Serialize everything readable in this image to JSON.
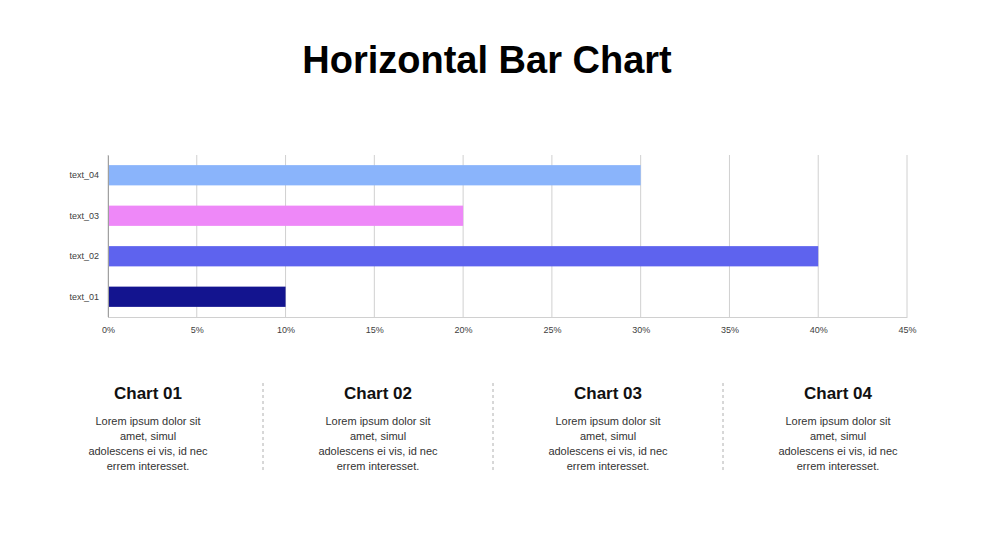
{
  "chart_data": {
    "type": "bar",
    "title": "Horizontal Bar Chart",
    "orientation": "horizontal",
    "categories": [
      "text_01",
      "text_02",
      "text_03",
      "text_04"
    ],
    "values": [
      10,
      40,
      20,
      30
    ],
    "colors": [
      "#13148f",
      "#5e63ee",
      "#ee88f8",
      "#8ab4fb"
    ],
    "xlim": [
      0,
      45
    ],
    "xticks": [
      {
        "value": 0,
        "label": "0%"
      },
      {
        "value": 5,
        "label": "5%"
      },
      {
        "value": 10,
        "label": "10%"
      },
      {
        "value": 15,
        "label": "15%"
      },
      {
        "value": 20,
        "label": "20%"
      },
      {
        "value": 25,
        "label": "25%"
      },
      {
        "value": 30,
        "label": "30%"
      },
      {
        "value": 35,
        "label": "35%"
      },
      {
        "value": 40,
        "label": "40%"
      },
      {
        "value": 45,
        "label": "45%"
      }
    ],
    "grid": true
  },
  "captions": [
    {
      "title": "Chart 01",
      "lines": [
        "Lorem ipsum dolor sit",
        "amet, simul",
        "adolescens ei vis, id nec",
        "errem interesset."
      ]
    },
    {
      "title": "Chart 02",
      "lines": [
        "Lorem ipsum dolor sit",
        "amet, simul",
        "adolescens ei vis, id nec",
        "errem interesset."
      ]
    },
    {
      "title": "Chart 03",
      "lines": [
        "Lorem ipsum dolor sit",
        "amet, simul",
        "adolescens ei vis, id nec",
        "errem interesset."
      ]
    },
    {
      "title": "Chart 04",
      "lines": [
        "Lorem ipsum dolor sit",
        "amet, simul",
        "adolescens ei vis, id nec",
        "errem interesset."
      ]
    }
  ]
}
